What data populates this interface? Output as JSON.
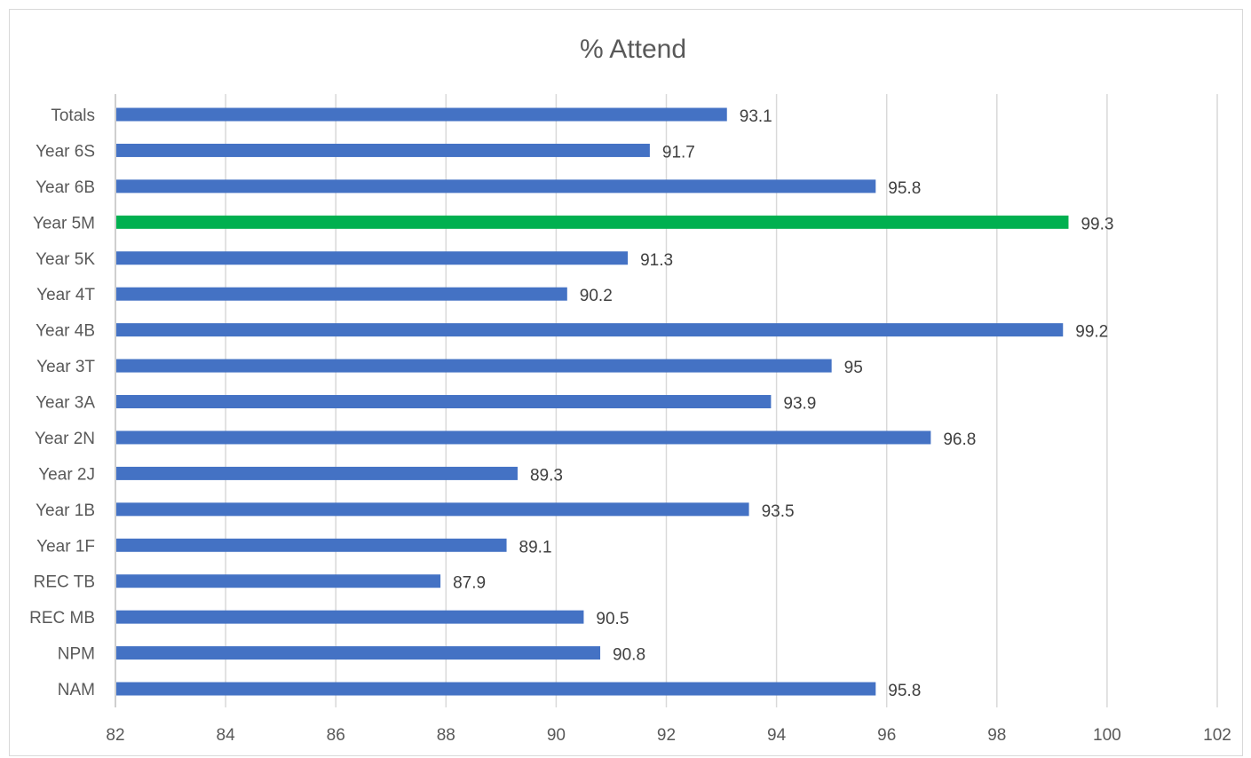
{
  "chart_data": {
    "type": "bar",
    "orientation": "horizontal",
    "title": "% Attend",
    "xlabel": "",
    "ylabel": "",
    "xlim": [
      82,
      102
    ],
    "x_ticks": [
      82,
      84,
      86,
      88,
      90,
      92,
      94,
      96,
      98,
      100,
      102
    ],
    "grid": true,
    "legend": "none",
    "data_labels": true,
    "default_color": "#4472C4",
    "highlight_color": "#00B050",
    "categories": [
      "Totals",
      "Year 6S",
      "Year 6B",
      "Year 5M",
      "Year 5K",
      "Year 4T",
      "Year 4B",
      "Year 3T",
      "Year 3A",
      "Year 2N",
      "Year 2J",
      "Year 1B",
      "Year 1F",
      "REC TB",
      "REC MB",
      "NPM",
      "NAM"
    ],
    "values": [
      93.1,
      91.7,
      95.8,
      99.3,
      91.3,
      90.2,
      99.2,
      95,
      93.9,
      96.8,
      89.3,
      93.5,
      89.1,
      87.9,
      90.5,
      90.8,
      95.8
    ],
    "highlighted": [
      "Year 5M"
    ]
  }
}
